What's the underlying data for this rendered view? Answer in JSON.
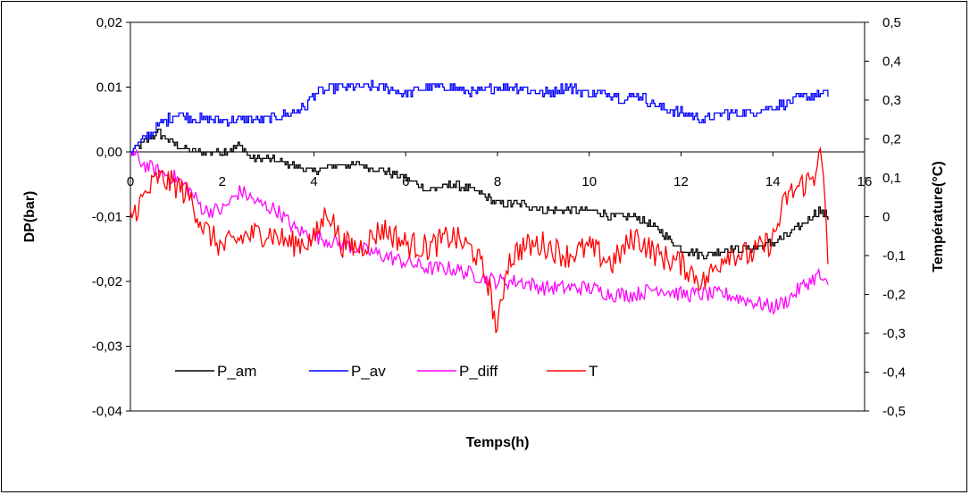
{
  "chart_data": {
    "type": "line",
    "title": "",
    "xlabel": "Temps(h)",
    "ylabel": "DP(bar)",
    "y2label": "Température(°C)",
    "xlim": [
      0,
      16
    ],
    "ylim": [
      -0.04,
      0.02
    ],
    "y2lim": [
      -0.5,
      0.5
    ],
    "x_ticks": [
      "0",
      "2",
      "4",
      "6",
      "8",
      "10",
      "12",
      "14",
      "16"
    ],
    "y_ticks": [
      "0,02",
      "0.01",
      "0,00",
      "-0,01",
      "-0,02",
      "-0,03",
      "-0,04"
    ],
    "y2_ticks": [
      "0,5",
      "0,4",
      "0,3",
      "0,2",
      "0,1",
      "0",
      "-0,1",
      "-0,2",
      "-0,3",
      "-0,4",
      "-0,5"
    ],
    "grid": false,
    "legend_position": "bottom-left inside plot",
    "series": [
      {
        "name": "P_am",
        "color": "#000000",
        "axis": "left",
        "points": [
          [
            0,
            0.0
          ],
          [
            0.2,
            0.001
          ],
          [
            0.4,
            0.002
          ],
          [
            0.6,
            0.003
          ],
          [
            0.8,
            0.002
          ],
          [
            1.0,
            0.001
          ],
          [
            1.4,
            0.0
          ],
          [
            2.0,
            0.0
          ],
          [
            2.4,
            0.001
          ],
          [
            2.6,
            -0.001
          ],
          [
            3.0,
            -0.001
          ],
          [
            3.5,
            -0.002
          ],
          [
            4.0,
            -0.003
          ],
          [
            4.5,
            -0.002
          ],
          [
            5.0,
            -0.002
          ],
          [
            5.5,
            -0.003
          ],
          [
            6.0,
            -0.004
          ],
          [
            6.5,
            -0.006
          ],
          [
            7.0,
            -0.005
          ],
          [
            7.5,
            -0.006
          ],
          [
            8.0,
            -0.008
          ],
          [
            8.5,
            -0.008
          ],
          [
            9.0,
            -0.009
          ],
          [
            9.5,
            -0.009
          ],
          [
            10.0,
            -0.009
          ],
          [
            10.5,
            -0.01
          ],
          [
            11.0,
            -0.01
          ],
          [
            11.5,
            -0.012
          ],
          [
            12.0,
            -0.015
          ],
          [
            12.5,
            -0.016
          ],
          [
            13.0,
            -0.015
          ],
          [
            13.5,
            -0.015
          ],
          [
            14.0,
            -0.014
          ],
          [
            14.5,
            -0.012
          ],
          [
            15.0,
            -0.009
          ],
          [
            15.2,
            -0.01
          ]
        ]
      },
      {
        "name": "P_av",
        "color": "#0000ff",
        "axis": "left",
        "points": [
          [
            0,
            0.0
          ],
          [
            0.3,
            0.002
          ],
          [
            0.6,
            0.004
          ],
          [
            1.0,
            0.006
          ],
          [
            1.5,
            0.005
          ],
          [
            2.0,
            0.005
          ],
          [
            2.5,
            0.005
          ],
          [
            3.0,
            0.005
          ],
          [
            3.5,
            0.006
          ],
          [
            3.8,
            0.007
          ],
          [
            4.0,
            0.009
          ],
          [
            4.5,
            0.01
          ],
          [
            5.0,
            0.01
          ],
          [
            5.5,
            0.01
          ],
          [
            6.0,
            0.009
          ],
          [
            6.5,
            0.01
          ],
          [
            7.0,
            0.01
          ],
          [
            7.5,
            0.009
          ],
          [
            8.0,
            0.01
          ],
          [
            8.5,
            0.01
          ],
          [
            9.0,
            0.009
          ],
          [
            9.5,
            0.01
          ],
          [
            10.0,
            0.009
          ],
          [
            10.5,
            0.009
          ],
          [
            10.8,
            0.008
          ],
          [
            11.0,
            0.009
          ],
          [
            11.5,
            0.007
          ],
          [
            12.0,
            0.006
          ],
          [
            12.5,
            0.005
          ],
          [
            13.0,
            0.006
          ],
          [
            13.5,
            0.006
          ],
          [
            14.0,
            0.007
          ],
          [
            14.5,
            0.008
          ],
          [
            15.0,
            0.009
          ],
          [
            15.2,
            0.009
          ]
        ]
      },
      {
        "name": "P_diff",
        "color": "#ff00ff",
        "axis": "left",
        "points": [
          [
            0,
            0.0
          ],
          [
            0.3,
            -0.002
          ],
          [
            0.6,
            -0.003
          ],
          [
            1.0,
            -0.004
          ],
          [
            1.3,
            -0.006
          ],
          [
            1.6,
            -0.009
          ],
          [
            2.0,
            -0.009
          ],
          [
            2.4,
            -0.006
          ],
          [
            2.8,
            -0.008
          ],
          [
            3.2,
            -0.009
          ],
          [
            3.6,
            -0.012
          ],
          [
            4.0,
            -0.013
          ],
          [
            4.5,
            -0.014
          ],
          [
            5.0,
            -0.015
          ],
          [
            5.5,
            -0.016
          ],
          [
            6.0,
            -0.017
          ],
          [
            6.5,
            -0.018
          ],
          [
            7.0,
            -0.018
          ],
          [
            7.5,
            -0.019
          ],
          [
            8.0,
            -0.02
          ],
          [
            8.5,
            -0.02
          ],
          [
            9.0,
            -0.021
          ],
          [
            9.5,
            -0.021
          ],
          [
            10.0,
            -0.021
          ],
          [
            10.5,
            -0.022
          ],
          [
            11.0,
            -0.022
          ],
          [
            11.5,
            -0.021
          ],
          [
            12.0,
            -0.022
          ],
          [
            12.5,
            -0.022
          ],
          [
            13.0,
            -0.022
          ],
          [
            13.5,
            -0.023
          ],
          [
            14.0,
            -0.024
          ],
          [
            14.3,
            -0.023
          ],
          [
            14.6,
            -0.021
          ],
          [
            15.0,
            -0.019
          ],
          [
            15.2,
            -0.021
          ]
        ]
      },
      {
        "name": "T",
        "color": "#ff0000",
        "axis": "right",
        "points": [
          [
            0,
            0.0
          ],
          [
            0.3,
            0.05
          ],
          [
            0.6,
            0.1
          ],
          [
            1.0,
            0.08
          ],
          [
            1.3,
            0.05
          ],
          [
            1.6,
            -0.03
          ],
          [
            2.0,
            -0.08
          ],
          [
            2.5,
            -0.05
          ],
          [
            3.0,
            -0.04
          ],
          [
            3.5,
            -0.07
          ],
          [
            4.0,
            -0.06
          ],
          [
            4.3,
            0.02
          ],
          [
            4.6,
            -0.07
          ],
          [
            5.0,
            -0.08
          ],
          [
            5.5,
            -0.03
          ],
          [
            6.0,
            -0.07
          ],
          [
            6.5,
            -0.08
          ],
          [
            7.0,
            -0.05
          ],
          [
            7.5,
            -0.09
          ],
          [
            7.8,
            -0.17
          ],
          [
            8.0,
            -0.3
          ],
          [
            8.2,
            -0.12
          ],
          [
            8.5,
            -0.08
          ],
          [
            9.0,
            -0.07
          ],
          [
            9.5,
            -0.1
          ],
          [
            10.0,
            -0.08
          ],
          [
            10.5,
            -0.12
          ],
          [
            11.0,
            -0.05
          ],
          [
            11.5,
            -0.1
          ],
          [
            12.0,
            -0.12
          ],
          [
            12.5,
            -0.17
          ],
          [
            13.0,
            -0.09
          ],
          [
            13.5,
            -0.1
          ],
          [
            14.0,
            -0.06
          ],
          [
            14.3,
            0.05
          ],
          [
            14.6,
            0.08
          ],
          [
            14.9,
            0.1
          ],
          [
            15.0,
            0.18
          ],
          [
            15.1,
            0.1
          ],
          [
            15.2,
            -0.12
          ]
        ]
      }
    ]
  }
}
